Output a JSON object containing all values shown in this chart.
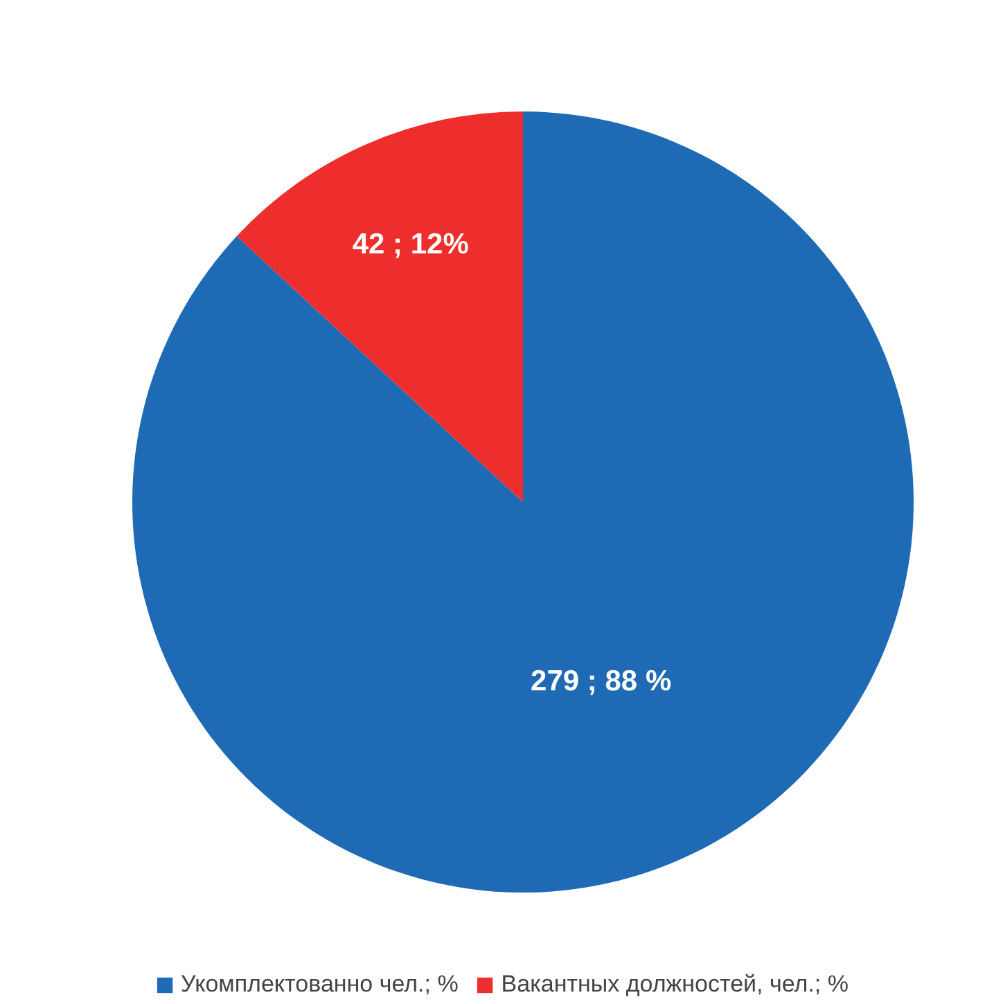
{
  "chart_data": {
    "type": "pie",
    "categories": [
      "Укомплектованно чел.; %",
      "Вакантных должностей, чел.; %"
    ],
    "values": [
      279,
      42
    ],
    "colors": [
      "#1f6ab5",
      "#ee2d2d"
    ],
    "value_labels": [
      "279 ; 88 %",
      "42 ; 12%"
    ],
    "legend": "bottom"
  }
}
